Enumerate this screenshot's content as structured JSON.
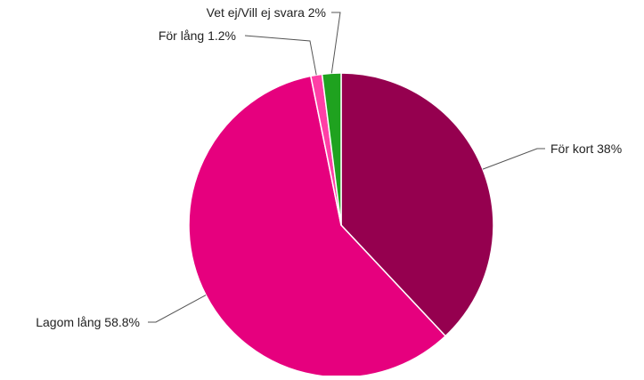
{
  "chart_data": {
    "type": "pie",
    "title": "",
    "slices": [
      {
        "label": "För kort 38%",
        "value": 38,
        "color": "#95004f"
      },
      {
        "label": "Lagom lång 58.8%",
        "value": 58.8,
        "color": "#e6007e"
      },
      {
        "label": "För lång 1.2%",
        "value": 1.2,
        "color": "#ff3fa6"
      },
      {
        "label": "Vet ej/Vill ej svara 2%",
        "value": 2,
        "color": "#1fa21f"
      }
    ]
  }
}
